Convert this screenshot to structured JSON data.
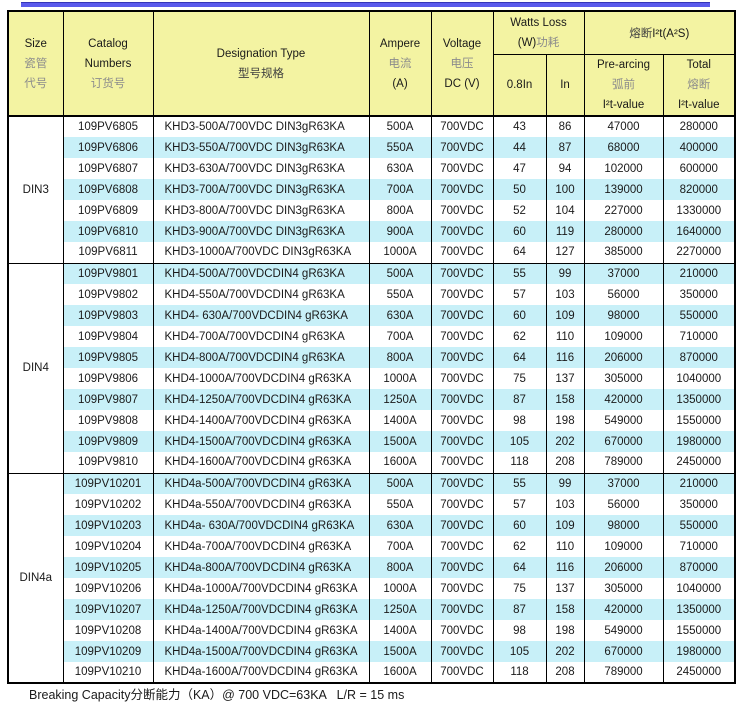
{
  "colors": {
    "header_bg": "#f3f3a2",
    "row_alt_bg": "#c8f0f8",
    "rule_blue": "#5a5aec",
    "border": "#000000",
    "cn_gray": "#8c8c8c"
  },
  "table": {
    "header": {
      "size": {
        "l1": "Size",
        "l2": "瓷管",
        "l3": "代号"
      },
      "catalog": {
        "l1": "Catalog",
        "l2": "Numbers",
        "l3": "订货号"
      },
      "designation": {
        "l1": "Designation Type",
        "l2": "型号规格"
      },
      "ampere": {
        "l1": "Ampere",
        "l2": "电流",
        "l3": "(A)"
      },
      "voltage": {
        "l1": "Voltage",
        "l2": "电压",
        "l3": "DC (V)"
      },
      "watts": {
        "l1": "Watts Loss",
        "l2a": "(W)",
        "l2b": "功耗"
      },
      "i2t": {
        "cn": "熔断",
        "en": "I²t(A²S)"
      },
      "sub_08in": "0.8In",
      "sub_in": "In",
      "prearcing": {
        "l1": "Pre-arcing",
        "l2": "弧前",
        "l3": "I²t-value"
      },
      "total": {
        "l1": "Total",
        "l2": "熔断",
        "l3": "I²t-value"
      }
    },
    "groups": [
      {
        "size": "DIN3",
        "rows": [
          [
            "109PV6805",
            "KHD3-500A/700VDC DIN3gR63KA",
            "500A",
            "700VDC",
            "43",
            "86",
            "47000",
            "280000"
          ],
          [
            "109PV6806",
            "KHD3-550A/700VDC DIN3gR63KA",
            "550A",
            "700VDC",
            "44",
            "87",
            "68000",
            "400000"
          ],
          [
            "109PV6807",
            "KHD3-630A/700VDC DIN3gR63KA",
            "630A",
            "700VDC",
            "47",
            "94",
            "102000",
            "600000"
          ],
          [
            "109PV6808",
            "KHD3-700A/700VDC DIN3gR63KA",
            "700A",
            "700VDC",
            "50",
            "100",
            "139000",
            "820000"
          ],
          [
            "109PV6809",
            "KHD3-800A/700VDC DIN3gR63KA",
            "800A",
            "700VDC",
            "52",
            "104",
            "227000",
            "1330000"
          ],
          [
            "109PV6810",
            "KHD3-900A/700VDC DIN3gR63KA",
            "900A",
            "700VDC",
            "60",
            "119",
            "280000",
            "1640000"
          ],
          [
            "109PV6811",
            "KHD3-1000A/700VDC DIN3gR63KA",
            "1000A",
            "700VDC",
            "64",
            "127",
            "385000",
            "2270000"
          ]
        ]
      },
      {
        "size": "DIN4",
        "rows": [
          [
            "109PV9801",
            "KHD4-500A/700VDCDIN4 gR63KA",
            "500A",
            "700VDC",
            "55",
            "99",
            "37000",
            "210000"
          ],
          [
            "109PV9802",
            "KHD4-550A/700VDCDIN4 gR63KA",
            "550A",
            "700VDC",
            "57",
            "103",
            "56000",
            "350000"
          ],
          [
            "109PV9803",
            "KHD4- 630A/700VDCDIN4 gR63KA",
            "630A",
            "700VDC",
            "60",
            "109",
            "98000",
            "550000"
          ],
          [
            "109PV9804",
            "KHD4-700A/700VDCDIN4 gR63KA",
            "700A",
            "700VDC",
            "62",
            "110",
            "109000",
            "710000"
          ],
          [
            "109PV9805",
            "KHD4-800A/700VDCDIN4 gR63KA",
            "800A",
            "700VDC",
            "64",
            "116",
            "206000",
            "870000"
          ],
          [
            "109PV9806",
            "KHD4-1000A/700VDCDIN4 gR63KA",
            "1000A",
            "700VDC",
            "75",
            "137",
            "305000",
            "1040000"
          ],
          [
            "109PV9807",
            "KHD4-1250A/700VDCDIN4 gR63KA",
            "1250A",
            "700VDC",
            "87",
            "158",
            "420000",
            "1350000"
          ],
          [
            "109PV9808",
            "KHD4-1400A/700VDCDIN4 gR63KA",
            "1400A",
            "700VDC",
            "98",
            "198",
            "549000",
            "1550000"
          ],
          [
            "109PV9809",
            "KHD4-1500A/700VDCDIN4 gR63KA",
            "1500A",
            "700VDC",
            "105",
            "202",
            "670000",
            "1980000"
          ],
          [
            "109PV9810",
            "KHD4-1600A/700VDCDIN4 gR63KA",
            "1600A",
            "700VDC",
            "118",
            "208",
            "789000",
            "2450000"
          ]
        ]
      },
      {
        "size": "DIN4a",
        "rows": [
          [
            "109PV10201",
            "KHD4a-500A/700VDCDIN4 gR63KA",
            "500A",
            "700VDC",
            "55",
            "99",
            "37000",
            "210000"
          ],
          [
            "109PV10202",
            "KHD4a-550A/700VDCDIN4 gR63KA",
            "550A",
            "700VDC",
            "57",
            "103",
            "56000",
            "350000"
          ],
          [
            "109PV10203",
            "KHD4a- 630A/700VDCDIN4 gR63KA",
            "630A",
            "700VDC",
            "60",
            "109",
            "98000",
            "550000"
          ],
          [
            "109PV10204",
            "KHD4a-700A/700VDCDIN4 gR63KA",
            "700A",
            "700VDC",
            "62",
            "110",
            "109000",
            "710000"
          ],
          [
            "109PV10205",
            "KHD4a-800A/700VDCDIN4 gR63KA",
            "800A",
            "700VDC",
            "64",
            "116",
            "206000",
            "870000"
          ],
          [
            "109PV10206",
            "KHD4a-1000A/700VDCDIN4 gR63KA",
            "1000A",
            "700VDC",
            "75",
            "137",
            "305000",
            "1040000"
          ],
          [
            "109PV10207",
            "KHD4a-1250A/700VDCDIN4 gR63KA",
            "1250A",
            "700VDC",
            "87",
            "158",
            "420000",
            "1350000"
          ],
          [
            "109PV10208",
            "KHD4a-1400A/700VDCDIN4 gR63KA",
            "1400A",
            "700VDC",
            "98",
            "198",
            "549000",
            "1550000"
          ],
          [
            "109PV10209",
            "KHD4a-1500A/700VDCDIN4 gR63KA",
            "1500A",
            "700VDC",
            "105",
            "202",
            "670000",
            "1980000"
          ],
          [
            "109PV10210",
            "KHD4a-1600A/700VDCDIN4 gR63KA",
            "1600A",
            "700VDC",
            "118",
            "208",
            "789000",
            "2450000"
          ]
        ]
      }
    ]
  },
  "footer": {
    "note": "Breaking Capacity分断能力（KA）@ 700 VDC=63KA   L/R = 15 ms"
  }
}
